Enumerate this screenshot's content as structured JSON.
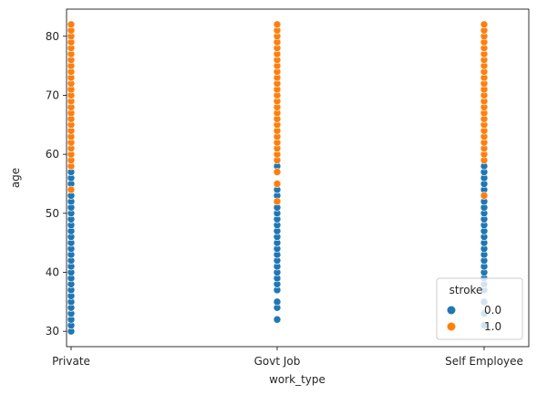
{
  "chart_data": {
    "type": "scatter",
    "xlabel": "work_type",
    "ylabel": "age",
    "categories": [
      "Private",
      "Govt Job",
      "Self Employee"
    ],
    "ylim": [
      27.4,
      84.6
    ],
    "yticks": [
      30,
      40,
      50,
      60,
      70,
      80
    ],
    "grid": false,
    "legend": {
      "title": "stroke",
      "position": "lower-right",
      "entries": [
        {
          "label": "0.0",
          "color": "#1f77b4"
        },
        {
          "label": "1.0",
          "color": "#ff7f0e"
        }
      ]
    },
    "series": [
      {
        "name": "0.0",
        "color": "#1f77b4",
        "points": [
          {
            "category": "Private",
            "ages": [
              30,
              31,
              32,
              33,
              34,
              35,
              36,
              37,
              38,
              39,
              40,
              41,
              42,
              43,
              44,
              45,
              46,
              47,
              48,
              49,
              50,
              51,
              52,
              53,
              55,
              56,
              57
            ]
          },
          {
            "category": "Govt Job",
            "ages": [
              32,
              34,
              35,
              37,
              38,
              39,
              40,
              41,
              42,
              43,
              44,
              45,
              46,
              47,
              48,
              49,
              50,
              51,
              52,
              53,
              54,
              55,
              58
            ]
          },
          {
            "category": "Self Employee",
            "ages": [
              31,
              33,
              35,
              37,
              38,
              39,
              40,
              41,
              42,
              43,
              44,
              45,
              46,
              47,
              48,
              49,
              50,
              51,
              52,
              54,
              55,
              56,
              57,
              58
            ]
          }
        ]
      },
      {
        "name": "1.0",
        "color": "#ff7f0e",
        "points": [
          {
            "category": "Private",
            "ages": [
              54,
              58,
              59,
              60,
              61,
              62,
              63,
              64,
              65,
              66,
              67,
              68,
              69,
              70,
              71,
              72,
              73,
              74,
              75,
              76,
              77,
              78,
              79,
              80,
              81,
              82
            ]
          },
          {
            "category": "Govt Job",
            "ages": [
              52,
              55,
              57,
              59,
              60,
              61,
              62,
              63,
              64,
              65,
              66,
              67,
              68,
              69,
              70,
              71,
              72,
              73,
              74,
              75,
              76,
              77,
              78,
              79,
              80,
              81,
              82
            ]
          },
          {
            "category": "Self Employee",
            "ages": [
              53,
              59,
              60,
              61,
              62,
              63,
              64,
              65,
              66,
              67,
              68,
              69,
              70,
              71,
              72,
              73,
              74,
              75,
              76,
              77,
              78,
              79,
              80,
              81,
              82
            ]
          }
        ]
      }
    ]
  }
}
